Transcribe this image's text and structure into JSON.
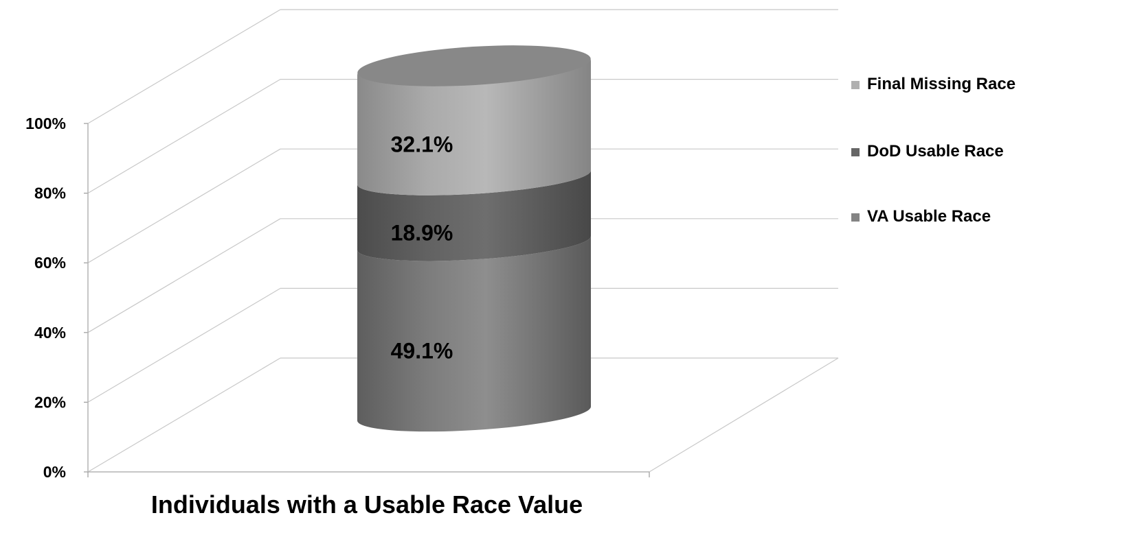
{
  "chart_data": {
    "type": "bar",
    "stacked": true,
    "percent_stacked": true,
    "style": "3d-cylinder",
    "categories": [
      "Individuals with a Usable Race Value"
    ],
    "series": [
      {
        "name": "VA Usable Race",
        "values": [
          49.1
        ],
        "label": "49.1%",
        "color": "#848484"
      },
      {
        "name": "DoD Usable Race",
        "values": [
          18.9
        ],
        "label": "18.9%",
        "color": "#666666"
      },
      {
        "name": "Final Missing Race",
        "values": [
          32.1
        ],
        "label": "32.1%",
        "color": "#b0b0b0"
      }
    ],
    "ylim": [
      0,
      100
    ],
    "yticks": [
      "0%",
      "20%",
      "40%",
      "60%",
      "80%",
      "100%"
    ],
    "grid": true,
    "legend": "right"
  }
}
